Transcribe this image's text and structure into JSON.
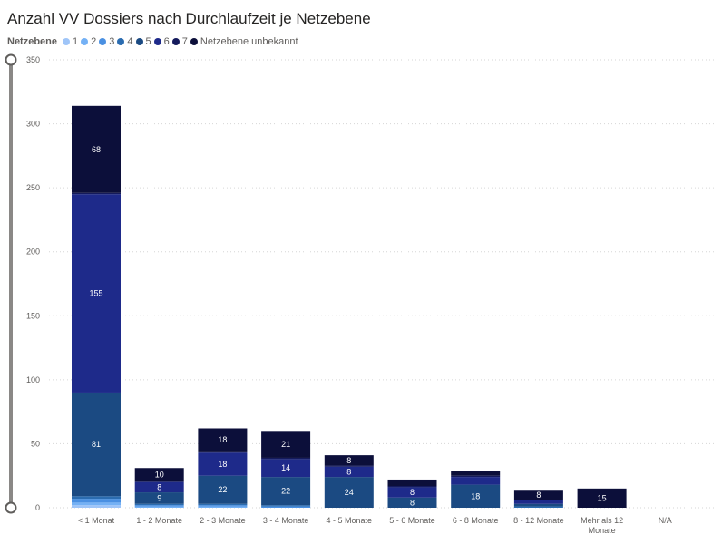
{
  "chart_data": {
    "type": "bar",
    "stacked": true,
    "title": "Anzahl VV Dossiers nach Durchlaufzeit je Netzebene",
    "legend_title": "Netzebene",
    "legend_position": "top-left",
    "grid": true,
    "ylim": [
      0,
      350
    ],
    "yticks": [
      0,
      50,
      100,
      150,
      200,
      250,
      300,
      350
    ],
    "categories": [
      "< 1 Monat",
      "1 - 2 Monate",
      "2 - 3 Monate",
      "3 - 4 Monate",
      "4 - 5 Monate",
      "5 - 6 Monate",
      "6 - 8 Monate",
      "8 - 12 Monate",
      "Mehr als 12 Monate",
      "N/A"
    ],
    "series": [
      {
        "name": "1",
        "color": "#9fc5f8",
        "values": [
          2,
          0,
          0,
          0,
          0,
          0,
          0,
          0,
          0,
          0
        ],
        "labels": [
          null,
          null,
          null,
          null,
          null,
          null,
          null,
          null,
          null,
          null
        ]
      },
      {
        "name": "2",
        "color": "#74b1f5",
        "values": [
          2,
          1,
          1,
          0,
          0,
          0,
          0,
          0,
          0,
          0
        ],
        "labels": [
          null,
          null,
          null,
          null,
          null,
          null,
          null,
          null,
          null,
          null
        ]
      },
      {
        "name": "3",
        "color": "#4a90e2",
        "values": [
          3,
          1,
          1,
          1,
          0,
          0,
          0,
          0,
          0,
          0
        ],
        "labels": [
          null,
          null,
          null,
          null,
          null,
          null,
          null,
          null,
          null,
          null
        ]
      },
      {
        "name": "4",
        "color": "#2b6cb0",
        "values": [
          2,
          1,
          1,
          1,
          0,
          0,
          0,
          1,
          0,
          0
        ],
        "labels": [
          null,
          null,
          null,
          null,
          null,
          null,
          null,
          null,
          null,
          null
        ]
      },
      {
        "name": "5",
        "color": "#1b4a82",
        "values": [
          81,
          9,
          22,
          22,
          24,
          8,
          18,
          2,
          0,
          0
        ],
        "labels": [
          "81",
          "9",
          "22",
          "22",
          "24",
          "8",
          "18",
          null,
          null,
          null
        ]
      },
      {
        "name": "6",
        "color": "#1e2a8a",
        "values": [
          155,
          8,
          18,
          14,
          8,
          8,
          6,
          3,
          0,
          0
        ],
        "labels": [
          "155",
          "8",
          "18",
          "14",
          "8",
          "8",
          null,
          null,
          null,
          null
        ]
      },
      {
        "name": "7",
        "color": "#141a5c",
        "values": [
          1,
          1,
          1,
          1,
          1,
          1,
          1,
          0,
          0,
          0
        ],
        "labels": [
          null,
          null,
          null,
          null,
          null,
          null,
          null,
          null,
          null,
          null
        ]
      },
      {
        "name": "Netzebene unbekannt",
        "color": "#0c0f3a",
        "values": [
          68,
          10,
          18,
          21,
          8,
          5,
          4,
          8,
          15,
          0
        ],
        "labels": [
          "68",
          "10",
          "18",
          "21",
          "8",
          null,
          null,
          "8",
          "15",
          null
        ]
      }
    ]
  }
}
